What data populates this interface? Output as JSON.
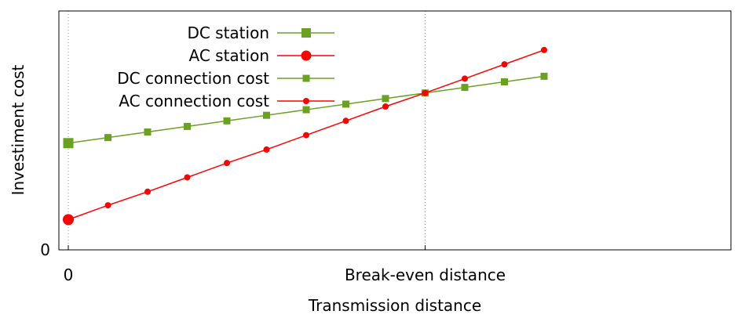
{
  "chart_data": {
    "type": "line",
    "xlabel": "Transmission distance",
    "ylabel": "Investiment cost",
    "x_ticks": [
      {
        "label": "0",
        "value": 0
      },
      {
        "label": "Break-even distance",
        "value": 9
      }
    ],
    "y_ticks": [
      {
        "label": "0",
        "value": 0
      }
    ],
    "xlim": [
      0,
      12.2
    ],
    "ylim": [
      0,
      300
    ],
    "grid": "vertical dotted lines at x ticks",
    "legend_placement": "top-left",
    "series": [
      {
        "name": "DC station",
        "kind": "station",
        "marker": "square",
        "color": "#6aa121",
        "points": [
          [
            0,
            134
          ]
        ]
      },
      {
        "name": "AC station",
        "kind": "station",
        "marker": "circle",
        "color": "#ff0000",
        "points": [
          [
            0,
            38
          ]
        ]
      },
      {
        "name": "DC connection cost",
        "kind": "connection",
        "marker": "square",
        "color": "#6aa121",
        "x": [
          0,
          1,
          2,
          3,
          4,
          5,
          6,
          7,
          8,
          9,
          10,
          11,
          12
        ],
        "y": [
          134,
          141,
          148,
          155,
          162,
          169,
          176,
          183,
          190,
          197,
          204,
          211,
          218
        ]
      },
      {
        "name": "AC connection cost",
        "kind": "connection",
        "marker": "circle",
        "color": "#ff0000",
        "x": [
          0,
          1,
          2,
          3,
          4,
          5,
          6,
          7,
          8,
          9,
          10,
          11,
          12
        ],
        "y": [
          38,
          56,
          73,
          91,
          109,
          126,
          144,
          162,
          180,
          197,
          215,
          233,
          251
        ]
      }
    ]
  }
}
